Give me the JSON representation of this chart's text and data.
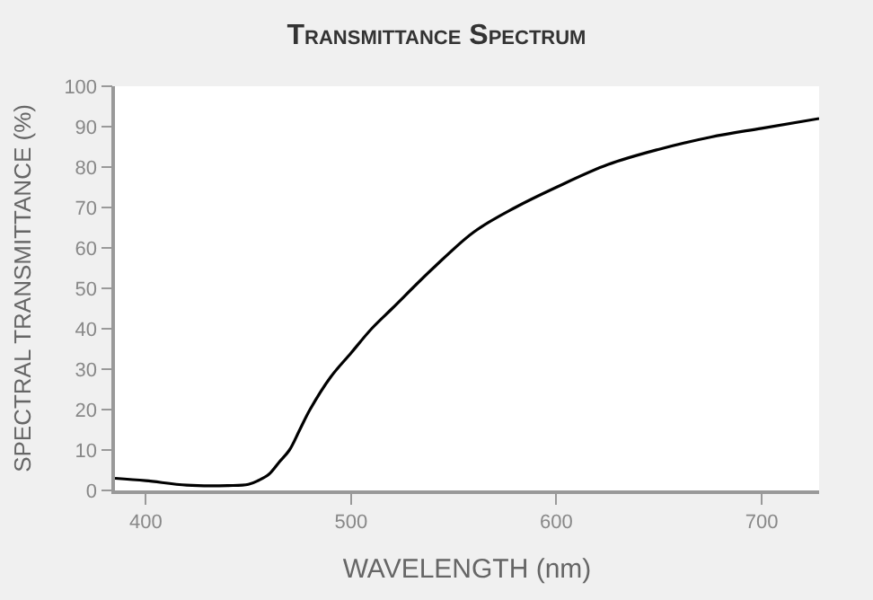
{
  "chart_data": {
    "type": "line",
    "title": "Transmittance Spectrum",
    "xlabel": "WAVELENGTH (nm)",
    "ylabel": "SPECTRAL TRANSMITTANCE (%)",
    "x": [
      385,
      400,
      420,
      440,
      450,
      455,
      460,
      465,
      470,
      475,
      480,
      490,
      500,
      510,
      520,
      540,
      560,
      580,
      600,
      625,
      650,
      675,
      700,
      728
    ],
    "series": [
      {
        "color": "#000000",
        "values": [
          3,
          2.4,
          1.3,
          1.2,
          1.5,
          2.5,
          4,
          7,
          10,
          15,
          20,
          28,
          34,
          40,
          45,
          55,
          64,
          70,
          75,
          80.6,
          84.4,
          87.4,
          89.6,
          92
        ]
      }
    ],
    "xlim": [
      385,
      728
    ],
    "ylim": [
      0,
      100
    ],
    "xticks": [
      400,
      500,
      600,
      700
    ],
    "yticks": [
      0,
      10,
      20,
      30,
      40,
      50,
      60,
      70,
      80,
      90,
      100
    ],
    "legend": false,
    "marker": "none",
    "line_style": "solid"
  }
}
